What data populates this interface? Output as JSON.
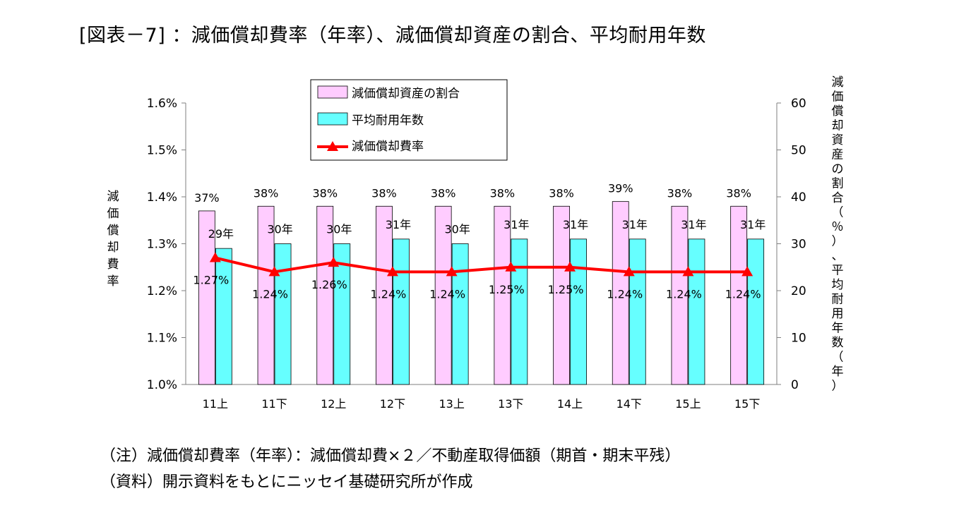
{
  "title": "[図表－7]  ：減価償却費率（年率）、減価償却資産の割合、平均耐用年数",
  "notes": [
    "（注）減価償却費率（年率）：減価償却費×２／不動産取得価額（期首・期末平残）",
    "（資料）開示資料をもとにニッセイ基礎研究所が作成"
  ],
  "chart_data": {
    "type": "bar",
    "categories": [
      "11上",
      "11下",
      "12上",
      "12下",
      "13上",
      "13下",
      "14上",
      "14下",
      "15上",
      "15下"
    ],
    "y_left": {
      "label": "減価償却費率",
      "range": [
        1.0,
        1.6
      ],
      "ticks": [
        "1.0%",
        "1.1%",
        "1.2%",
        "1.3%",
        "1.4%",
        "1.5%",
        "1.6%"
      ]
    },
    "y_right": {
      "label": "減価償却資産の割合（％）、平均耐用年数（年）",
      "range": [
        0,
        60
      ],
      "ticks": [
        "0",
        "10",
        "20",
        "30",
        "40",
        "50",
        "60"
      ]
    },
    "series": [
      {
        "name": "減価償却資産の割合",
        "type": "bar",
        "axis": "right",
        "color": "#FFCCFF",
        "values": [
          37,
          38,
          38,
          38,
          38,
          38,
          38,
          39,
          38,
          38
        ],
        "labels": [
          "37%",
          "38%",
          "38%",
          "38%",
          "38%",
          "38%",
          "38%",
          "39%",
          "38%",
          "38%"
        ]
      },
      {
        "name": "平均耐用年数",
        "type": "bar",
        "axis": "right",
        "color": "#66FFFF",
        "values": [
          29,
          30,
          30,
          31,
          30,
          31,
          31,
          31,
          31,
          31
        ],
        "labels": [
          "29年",
          "30年",
          "30年",
          "31年",
          "30年",
          "31年",
          "31年",
          "31年",
          "31年",
          "31年"
        ]
      },
      {
        "name": "減価償却費率",
        "type": "line",
        "axis": "left",
        "color": "#FF0000",
        "values": [
          1.27,
          1.24,
          1.26,
          1.24,
          1.24,
          1.25,
          1.25,
          1.24,
          1.24,
          1.24
        ],
        "labels": [
          "1.27%",
          "1.24%",
          "1.26%",
          "1.24%",
          "1.24%",
          "1.25%",
          "1.25%",
          "1.24%",
          "1.24%",
          "1.24%"
        ]
      }
    ],
    "legend_position": "top-center",
    "grid": false
  }
}
